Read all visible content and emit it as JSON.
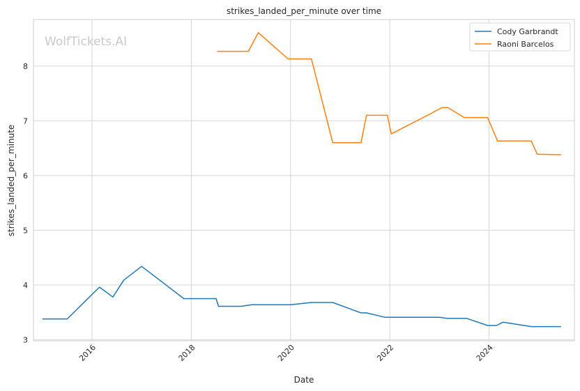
{
  "chart_data": {
    "type": "line",
    "title": "strikes_landed_per_minute over time",
    "xlabel": "Date",
    "ylabel": "strikes_landed_per_minute",
    "xlim": [
      2014.82,
      2025.72
    ],
    "ylim": [
      2.98,
      8.85
    ],
    "x_ticks": [
      2016,
      2018,
      2020,
      2022,
      2024
    ],
    "x_tick_labels": [
      "2016",
      "2018",
      "2020",
      "2022",
      "2024"
    ],
    "y_ticks": [
      3,
      4,
      5,
      6,
      7,
      8
    ],
    "y_tick_labels": [
      "3",
      "4",
      "5",
      "6",
      "7",
      "8"
    ],
    "grid": true,
    "legend_position": "top-right",
    "watermark": "WolfTickets.AI",
    "series": [
      {
        "name": "Cody Garbrandt",
        "color": "#1f77b4",
        "x": [
          2015.0,
          2015.5,
          2016.15,
          2016.42,
          2016.64,
          2017.0,
          2017.85,
          2018.5,
          2018.55,
          2019.0,
          2019.22,
          2020.0,
          2020.42,
          2020.85,
          2021.42,
          2021.53,
          2021.9,
          2022.3,
          2022.7,
          2023.0,
          2023.15,
          2023.55,
          2023.97,
          2024.15,
          2024.28,
          2024.85,
          2025.45
        ],
        "y": [
          3.38,
          3.38,
          3.96,
          3.78,
          4.09,
          4.34,
          3.75,
          3.75,
          3.61,
          3.61,
          3.64,
          3.64,
          3.68,
          3.68,
          3.49,
          3.49,
          3.41,
          3.41,
          3.41,
          3.41,
          3.39,
          3.39,
          3.26,
          3.26,
          3.32,
          3.24,
          3.24
        ]
      },
      {
        "name": "Raoni Barcelos",
        "color": "#ff7f0e",
        "x": [
          2018.52,
          2019.15,
          2019.35,
          2019.95,
          2020.42,
          2020.85,
          2021.42,
          2021.53,
          2021.95,
          2022.03,
          2022.8,
          2023.05,
          2023.17,
          2023.5,
          2023.97,
          2024.17,
          2024.85,
          2024.97,
          2025.45
        ],
        "y": [
          8.27,
          8.27,
          8.61,
          8.13,
          8.13,
          6.6,
          6.6,
          7.1,
          7.1,
          6.76,
          7.12,
          7.24,
          7.24,
          7.06,
          7.06,
          6.63,
          6.63,
          6.39,
          6.38
        ]
      }
    ]
  }
}
